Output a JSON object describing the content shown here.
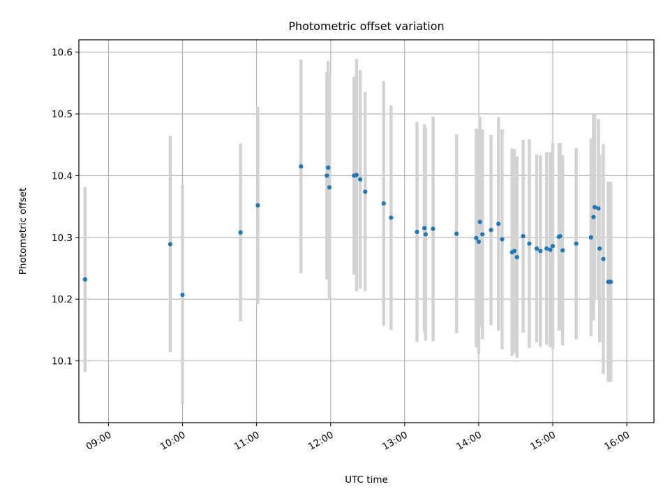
{
  "chart_data": {
    "type": "scatter",
    "title": "Photometric offset variation",
    "xlabel": "UTC time",
    "ylabel": "Photometric offset",
    "x_ticks": [
      "09:00",
      "10:00",
      "11:00",
      "12:00",
      "13:00",
      "14:00",
      "15:00",
      "16:00"
    ],
    "y_ticks": [
      "10.1",
      "10.2",
      "10.3",
      "10.4",
      "10.5",
      "10.6"
    ],
    "xlim": [
      "08:36",
      "16:22"
    ],
    "ylim": [
      10.0,
      10.62
    ],
    "grid": true,
    "legend": "none",
    "colors": {
      "points": "#1f77b4",
      "errorbars": "#d3d3d3",
      "grid": "#b0b0b0",
      "axes": "#000000"
    },
    "series": [
      {
        "x": [
          "08:41",
          "09:50",
          "10:00",
          "10:47",
          "11:01",
          "11:36",
          "11:57",
          "11:58",
          "11:59",
          "12:19",
          "12:21",
          "12:24",
          "12:28",
          "12:43",
          "12:49",
          "13:10",
          "13:16",
          "13:17",
          "13:23",
          "13:42",
          "13:58",
          "14:00",
          "14:01",
          "14:03",
          "14:10",
          "14:16",
          "14:19",
          "14:27",
          "14:29",
          "14:31",
          "14:36",
          "14:41",
          "14:47",
          "14:50",
          "14:55",
          "14:58",
          "15:00",
          "15:05",
          "15:06",
          "15:08",
          "15:19",
          "15:31",
          "15:33",
          "15:34",
          "15:37",
          "15:38",
          "15:41",
          "15:45",
          "15:46",
          "15:47"
        ],
        "y": [
          10.232,
          10.289,
          10.207,
          10.308,
          10.352,
          10.415,
          10.4,
          10.413,
          10.381,
          10.4,
          10.401,
          10.394,
          10.374,
          10.355,
          10.332,
          10.309,
          10.315,
          10.305,
          10.314,
          10.306,
          10.299,
          10.293,
          10.325,
          10.305,
          10.312,
          10.322,
          10.297,
          10.276,
          10.278,
          10.268,
          10.302,
          10.29,
          10.282,
          10.278,
          10.282,
          10.28,
          10.286,
          10.301,
          10.302,
          10.279,
          10.29,
          10.3,
          10.333,
          10.349,
          10.347,
          10.282,
          10.265,
          10.228,
          10.228,
          10.228
        ],
        "yerr": [
          0.15,
          0.175,
          0.178,
          0.144,
          0.16,
          0.173,
          0.168,
          0.173,
          0.182,
          0.16,
          0.188,
          0.177,
          0.161,
          0.198,
          0.182,
          0.178,
          0.168,
          0.172,
          0.182,
          0.161,
          0.177,
          0.182,
          0.17,
          0.17,
          0.154,
          0.173,
          0.178,
          0.168,
          0.165,
          0.163,
          0.156,
          0.169,
          0.152,
          0.155,
          0.156,
          0.158,
          0.167,
          0.152,
          0.151,
          0.154,
          0.155,
          0.16,
          0.168,
          0.15,
          0.145,
          0.152,
          0.186,
          0.162,
          0.162,
          0.162
        ]
      }
    ]
  }
}
